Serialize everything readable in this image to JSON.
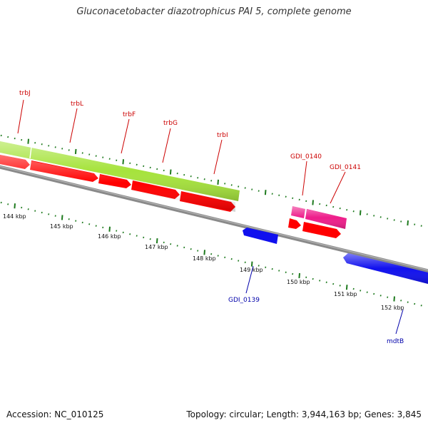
{
  "title": "Gluconacetobacter diazotrophicus PAI 5, complete genome",
  "footer": {
    "accession": "Accession: NC_010125",
    "summary": "Topology: circular; Length: 3,944,163 bp; Genes: 3,845"
  },
  "colors": {
    "backbone": "#808080",
    "tick": "#1e7a1e",
    "forward_gene": "#ff0000",
    "operon": "#a6e33c",
    "pink_gene": "#ee1d8a",
    "reverse_gene": "#0000ee",
    "forward_label": "#cc0000",
    "reverse_label": "#0000aa"
  },
  "scale_labels": [
    "144 kbp",
    "145 kbp",
    "146 kbp",
    "147 kbp",
    "148 kbp",
    "149 kbp",
    "150 kbp",
    "151 kbp",
    "152 kbp"
  ],
  "forward_labels": [
    "trbJ",
    "trbL",
    "trbF",
    "trbG",
    "trbI",
    "GDI_0140",
    "GDI_0141"
  ],
  "reverse_labels": [
    "GDI_0139",
    "mdtB"
  ]
}
